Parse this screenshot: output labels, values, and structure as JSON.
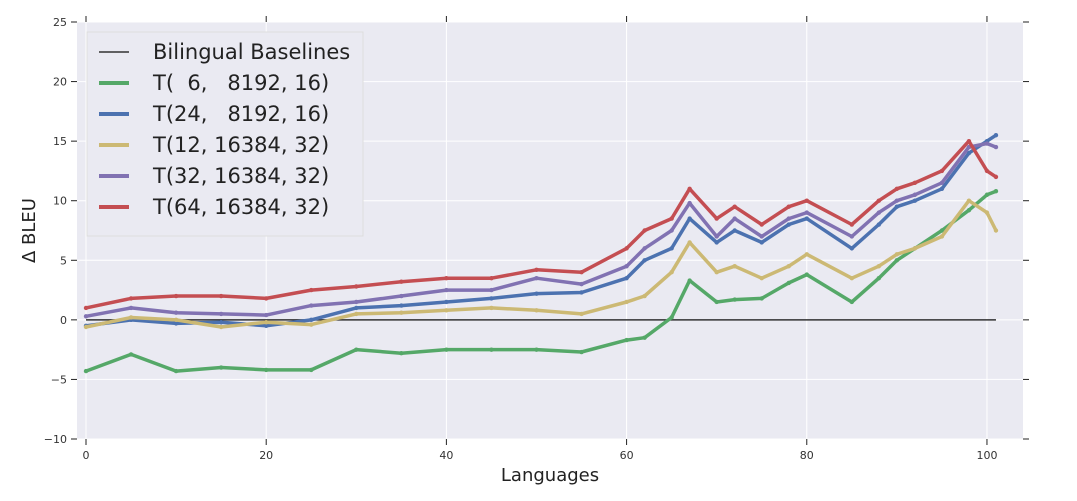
{
  "chart_data": {
    "type": "line",
    "title": "",
    "xlabel": "Languages",
    "ylabel": "Δ BLEU",
    "xlim": [
      -1,
      104
    ],
    "ylim": [
      -10,
      25
    ],
    "xticks": [
      0,
      20,
      40,
      60,
      80,
      100
    ],
    "yticks": [
      -10,
      -5,
      0,
      5,
      10,
      15,
      20,
      25
    ],
    "grid": true,
    "legend_position": "top-left",
    "colors": {
      "background": "#eaeaf2",
      "grid": "#ffffff",
      "baseline": "#333333",
      "green": "#55a868",
      "blue": "#4c72b0",
      "yellow": "#ccb974",
      "purple": "#8172b2",
      "red": "#c44e52"
    },
    "legend": [
      "Bilingual Baselines",
      "T(  6,   8192, 16)",
      "T(24,   8192, 16)",
      "T(12, 16384, 32)",
      "T(32, 16384, 32)",
      "T(64, 16384, 32)"
    ],
    "baseline": {
      "name": "Bilingual Baselines",
      "value": 0
    },
    "series": [
      {
        "name": "T(  6,   8192, 16)",
        "color": "#55a868",
        "x": [
          0,
          5,
          10,
          15,
          20,
          25,
          30,
          35,
          40,
          45,
          50,
          55,
          60,
          62,
          65,
          67,
          70,
          72,
          75,
          78,
          80,
          85,
          88,
          90,
          92,
          95,
          98,
          100,
          101
        ],
        "y": [
          -4.3,
          -2.9,
          -4.3,
          -4.0,
          -4.2,
          -4.2,
          -2.5,
          -2.8,
          -2.5,
          -2.5,
          -2.5,
          -2.7,
          -1.7,
          -1.5,
          0.2,
          3.3,
          1.5,
          1.7,
          1.8,
          3.1,
          3.8,
          1.5,
          3.5,
          5.0,
          6.0,
          7.5,
          9.2,
          10.5,
          10.8
        ]
      },
      {
        "name": "T(24,   8192, 16)",
        "color": "#4c72b0",
        "x": [
          0,
          5,
          10,
          15,
          20,
          25,
          30,
          35,
          40,
          45,
          50,
          55,
          60,
          62,
          65,
          67,
          70,
          72,
          75,
          78,
          80,
          85,
          88,
          90,
          92,
          95,
          98,
          100,
          101
        ],
        "y": [
          -0.5,
          0.0,
          -0.3,
          -0.2,
          -0.5,
          0.0,
          1.0,
          1.2,
          1.5,
          1.8,
          2.2,
          2.3,
          3.5,
          5.0,
          6.0,
          8.5,
          6.5,
          7.5,
          6.5,
          8.0,
          8.5,
          6.0,
          8.0,
          9.5,
          10.0,
          11.0,
          14.0,
          15.0,
          15.5
        ]
      },
      {
        "name": "T(12, 16384, 32)",
        "color": "#ccb974",
        "x": [
          0,
          5,
          10,
          15,
          20,
          25,
          30,
          35,
          40,
          45,
          50,
          55,
          60,
          62,
          65,
          67,
          70,
          72,
          75,
          78,
          80,
          85,
          88,
          90,
          92,
          95,
          98,
          100,
          101
        ],
        "y": [
          -0.6,
          0.2,
          0.0,
          -0.6,
          -0.2,
          -0.4,
          0.5,
          0.6,
          0.8,
          1.0,
          0.8,
          0.5,
          1.5,
          2.0,
          4.0,
          6.5,
          4.0,
          4.5,
          3.5,
          4.5,
          5.5,
          3.5,
          4.5,
          5.5,
          6.0,
          7.0,
          10.0,
          9.0,
          7.5
        ]
      },
      {
        "name": "T(32, 16384, 32)",
        "color": "#8172b2",
        "x": [
          0,
          5,
          10,
          15,
          20,
          25,
          30,
          35,
          40,
          45,
          50,
          55,
          60,
          62,
          65,
          67,
          70,
          72,
          75,
          78,
          80,
          85,
          88,
          90,
          92,
          95,
          98,
          100,
          101
        ],
        "y": [
          0.3,
          1.0,
          0.6,
          0.5,
          0.4,
          1.2,
          1.5,
          2.0,
          2.5,
          2.5,
          3.5,
          3.0,
          4.5,
          6.0,
          7.5,
          9.8,
          7.0,
          8.5,
          7.0,
          8.5,
          9.0,
          7.0,
          9.0,
          10.0,
          10.5,
          11.5,
          14.5,
          14.8,
          14.5
        ]
      },
      {
        "name": "T(64, 16384, 32)",
        "color": "#c44e52",
        "x": [
          0,
          5,
          10,
          15,
          20,
          25,
          30,
          35,
          40,
          45,
          50,
          55,
          60,
          62,
          65,
          67,
          70,
          72,
          75,
          78,
          80,
          85,
          88,
          90,
          92,
          95,
          98,
          100,
          101
        ],
        "y": [
          1.0,
          1.8,
          2.0,
          2.0,
          1.8,
          2.5,
          2.8,
          3.2,
          3.5,
          3.5,
          4.2,
          4.0,
          6.0,
          7.5,
          8.5,
          11.0,
          8.5,
          9.5,
          8.0,
          9.5,
          10.0,
          8.0,
          10.0,
          11.0,
          11.5,
          12.5,
          15.0,
          12.5,
          12.0
        ]
      }
    ]
  }
}
